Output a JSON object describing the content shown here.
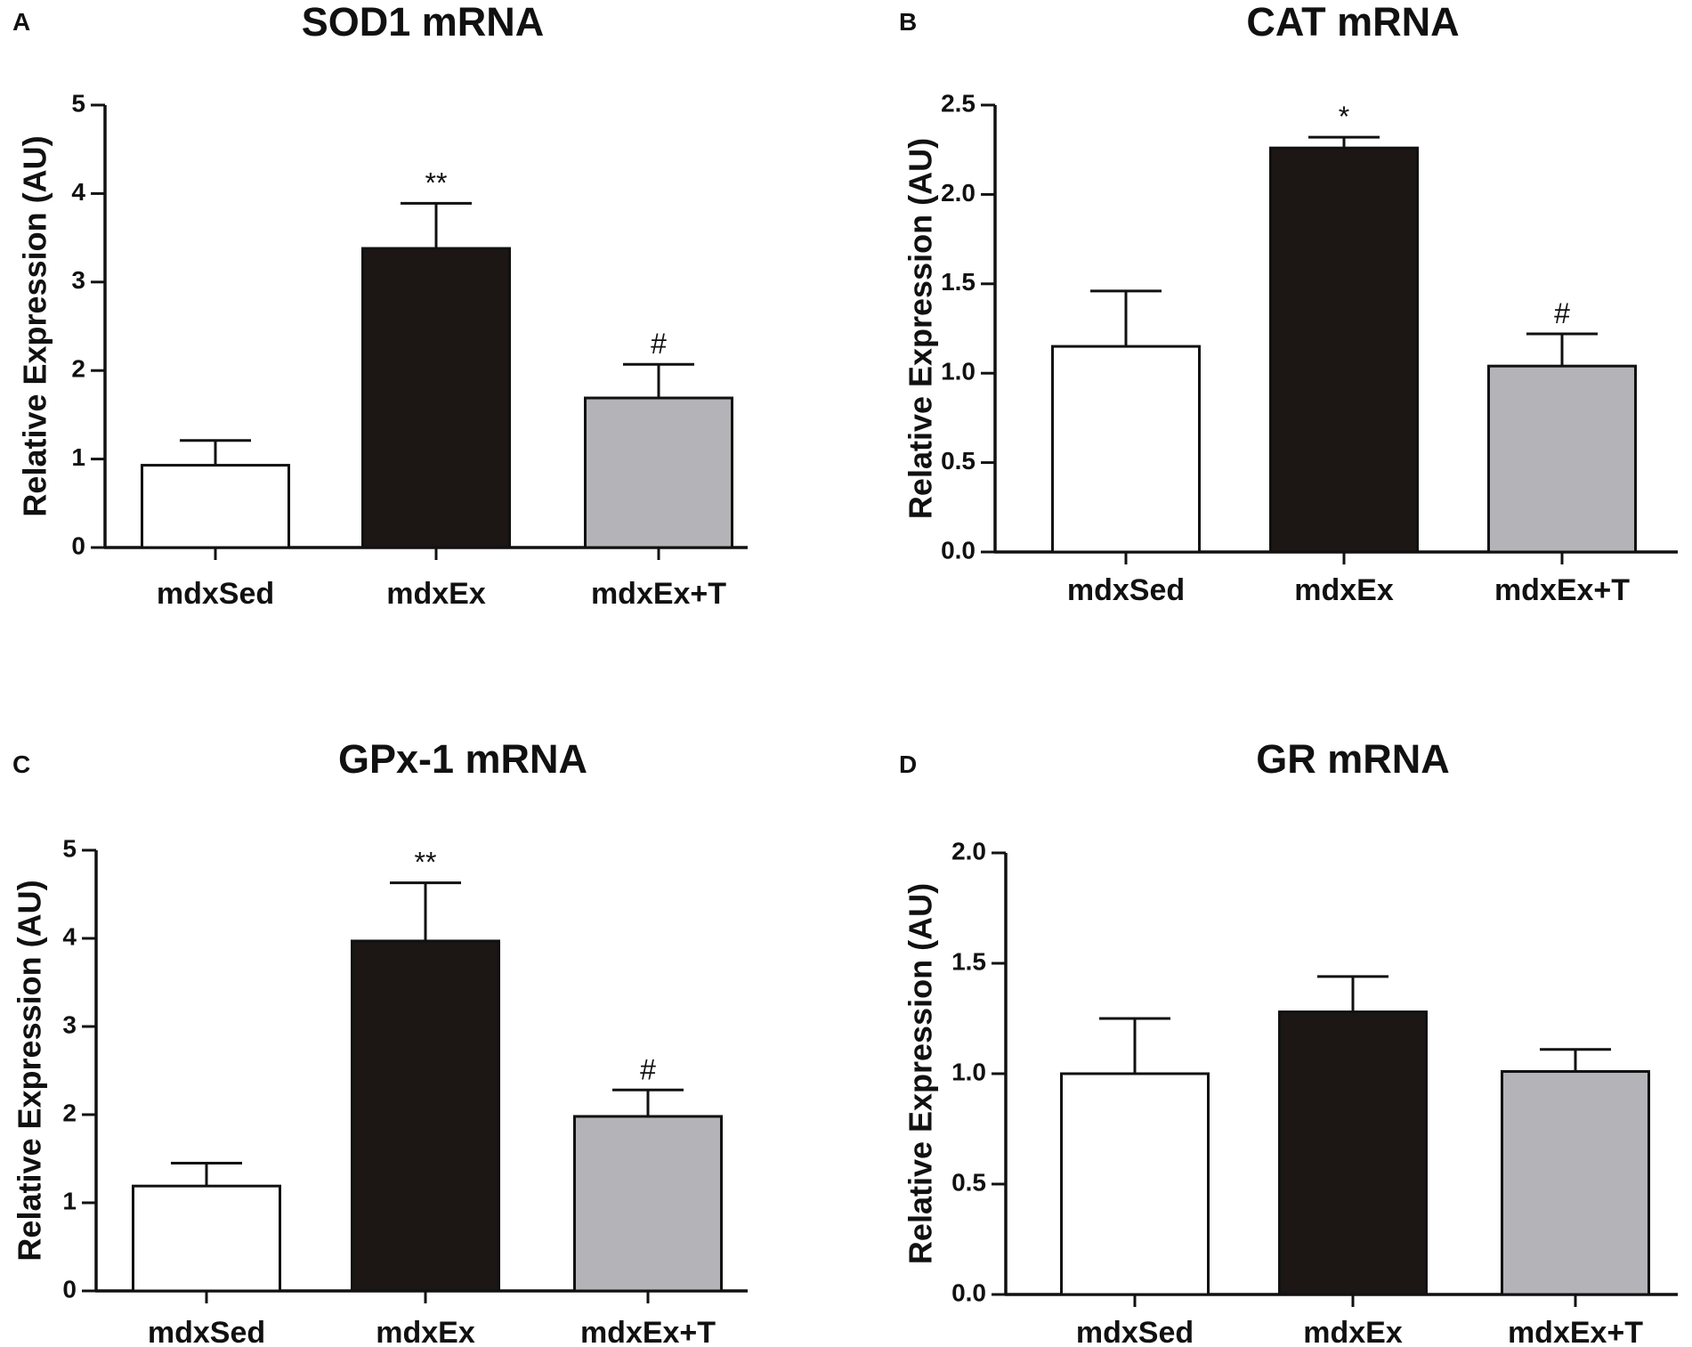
{
  "chart_data": [
    {
      "panel": "A",
      "type": "bar",
      "title": "SOD1 mRNA",
      "xlabel": "",
      "ylabel": "Relative Expression (AU)",
      "ylim": [
        0,
        5
      ],
      "yticks": [
        "0",
        "1",
        "2",
        "3",
        "4",
        "5"
      ],
      "categories": [
        "mdxSed",
        "mdxEx",
        "mdxEx+T"
      ],
      "values": [
        0.93,
        3.38,
        1.69
      ],
      "errors": [
        0.28,
        0.51,
        0.38
      ],
      "colors": [
        "#ffffff",
        "#1c1615",
        "#b4b3b8"
      ],
      "annotations": [
        "",
        "**",
        "#"
      ]
    },
    {
      "panel": "B",
      "type": "bar",
      "title": "CAT mRNA",
      "xlabel": "",
      "ylabel": "Relative Expression (AU)",
      "ylim": [
        0,
        2.5
      ],
      "yticks": [
        "0.0",
        "0.5",
        "1.0",
        "1.5",
        "2.0",
        "2.5"
      ],
      "categories": [
        "mdxSed",
        "mdxEx",
        "mdxEx+T"
      ],
      "values": [
        1.15,
        2.26,
        1.04
      ],
      "errors": [
        0.31,
        0.06,
        0.18
      ],
      "colors": [
        "#ffffff",
        "#1c1615",
        "#b4b3b8"
      ],
      "annotations": [
        "",
        "*",
        "#"
      ]
    },
    {
      "panel": "C",
      "type": "bar",
      "title": "GPx-1 mRNA",
      "xlabel": "",
      "ylabel": "Relative Expression (AU)",
      "ylim": [
        0,
        5
      ],
      "yticks": [
        "0",
        "1",
        "2",
        "3",
        "4",
        "5"
      ],
      "categories": [
        "mdxSed",
        "mdxEx",
        "mdxEx+T"
      ],
      "values": [
        1.19,
        3.97,
        1.98
      ],
      "errors": [
        0.26,
        0.66,
        0.3
      ],
      "colors": [
        "#ffffff",
        "#1c1615",
        "#b4b3b8"
      ],
      "annotations": [
        "",
        "**",
        "#"
      ]
    },
    {
      "panel": "D",
      "type": "bar",
      "title": "GR mRNA",
      "xlabel": "",
      "ylabel": "Relative Expression (AU)",
      "ylim": [
        0,
        2.0
      ],
      "yticks": [
        "0.0",
        "0.5",
        "1.0",
        "1.5",
        "2.0"
      ],
      "categories": [
        "mdxSed",
        "mdxEx",
        "mdxEx+T"
      ],
      "values": [
        1.0,
        1.28,
        1.01
      ],
      "errors": [
        0.25,
        0.16,
        0.1
      ],
      "colors": [
        "#ffffff",
        "#1c1615",
        "#b4b3b8"
      ],
      "annotations": [
        "",
        "",
        ""
      ]
    }
  ]
}
